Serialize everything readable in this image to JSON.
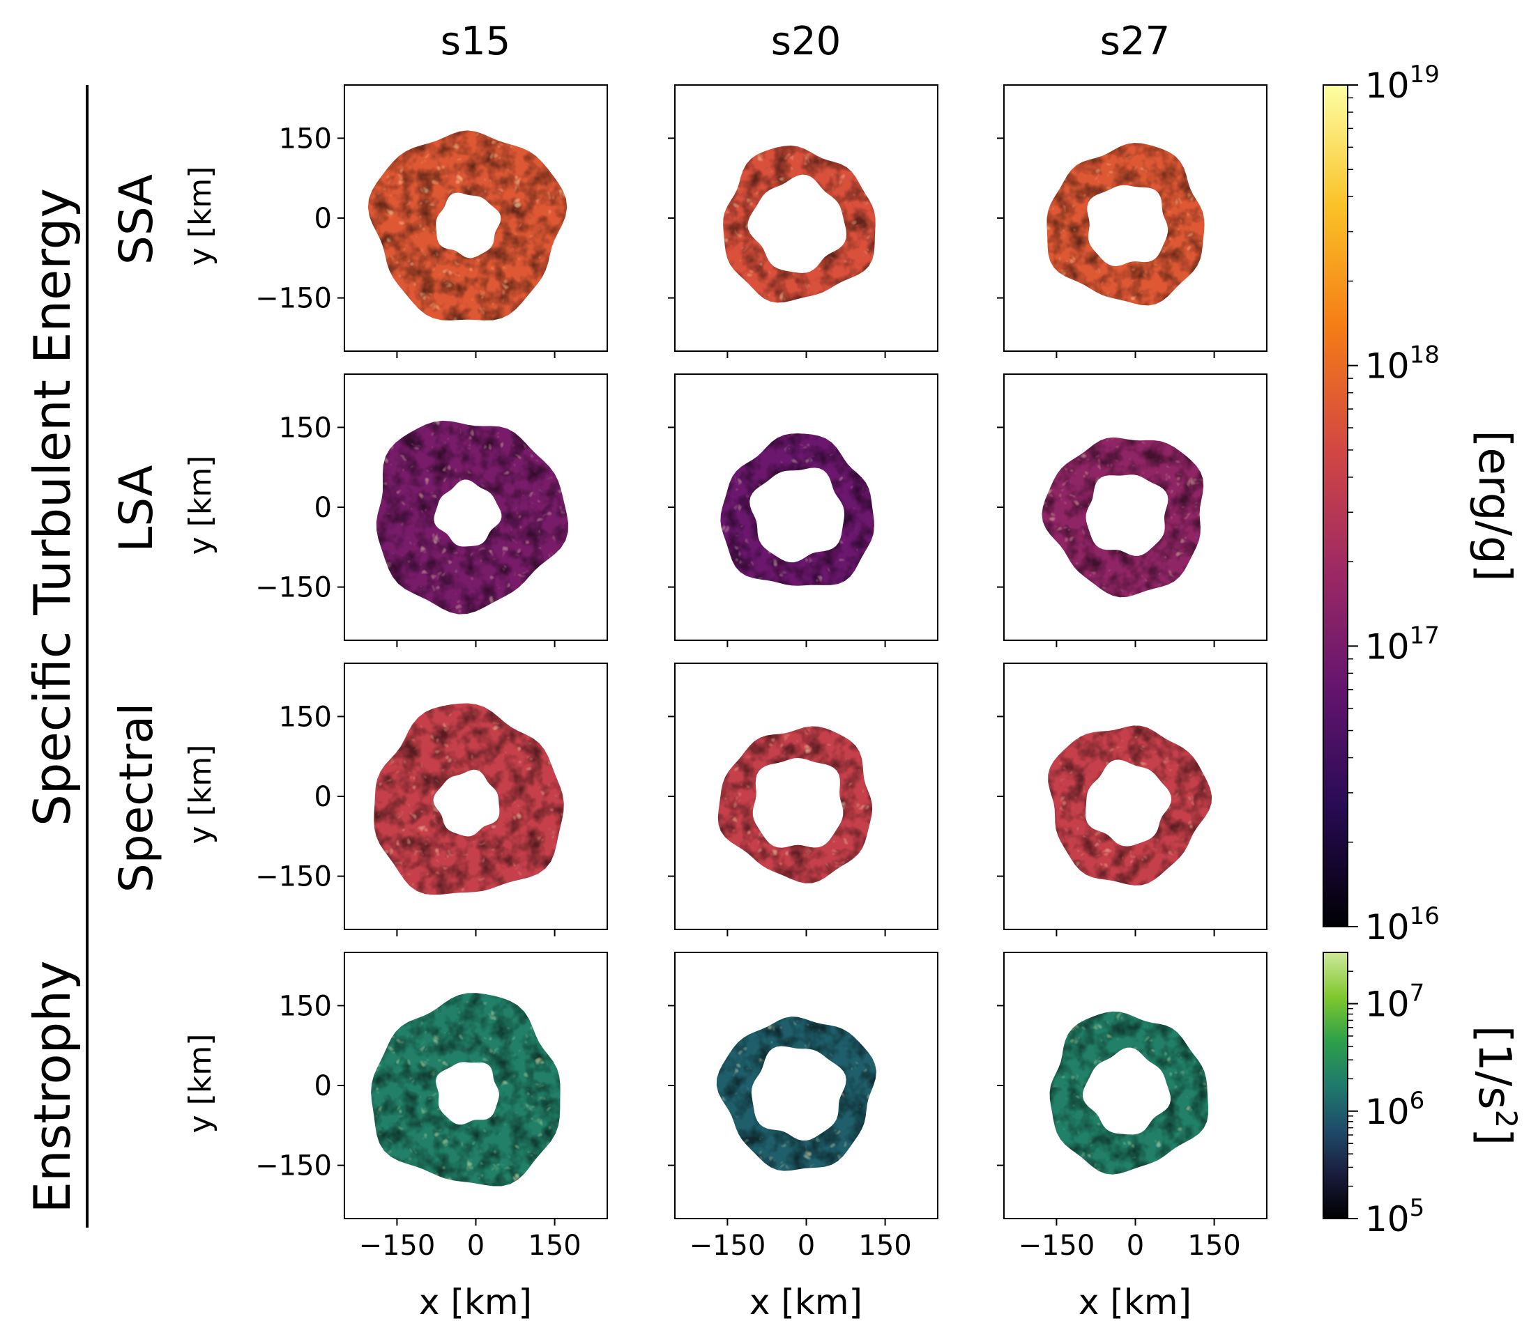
{
  "figure": {
    "column_titles": [
      "s15",
      "s20",
      "s27"
    ],
    "group_labels": {
      "top": "Specific Turbulent Energy",
      "bottom": "Enstrophy"
    },
    "row_labels": [
      "SSA",
      "LSA",
      "Spectral",
      ""
    ],
    "xlabel": "x [km]",
    "ylabel": "y [km]",
    "x_ticks": [
      "−150",
      "0",
      "150"
    ],
    "y_ticks": [
      "150",
      "0",
      "−150"
    ]
  },
  "colorbars": [
    {
      "label": "[erg/g]",
      "colormap": "inferno",
      "scale": "log",
      "range": [
        1e+16,
        1e+19
      ],
      "tick_labels": [
        {
          "base": "10",
          "exp": "19",
          "value": 1e+19
        },
        {
          "base": "10",
          "exp": "18",
          "value": 1e+18
        },
        {
          "base": "10",
          "exp": "17",
          "value": 1e+17
        },
        {
          "base": "10",
          "exp": "16",
          "value": 1e+16
        }
      ],
      "colors": [
        "#000004",
        "#280b54",
        "#65156e",
        "#9f2a63",
        "#d44842",
        "#f57d15",
        "#fac228",
        "#fcffa4"
      ]
    },
    {
      "label": "[1/s",
      "label_sup": "2",
      "label_end": "]",
      "colormap": "viridis-like",
      "scale": "log",
      "range": [
        100000.0,
        30000000.0
      ],
      "tick_labels": [
        {
          "base": "10",
          "exp": "7",
          "value": 10000000.0
        },
        {
          "base": "10",
          "exp": "6",
          "value": 1000000.0
        },
        {
          "base": "10",
          "exp": "5",
          "value": 100000.0
        }
      ],
      "colors": [
        "#000000",
        "#1a1c3c",
        "#1f4b6a",
        "#1f7a6c",
        "#2ca04a",
        "#7fc82d",
        "#cfe89a"
      ]
    }
  ],
  "chart_data": {
    "type": "heatmap",
    "rows": [
      "SSA",
      "LSA",
      "Spectral",
      "Enstrophy"
    ],
    "columns": [
      "s15",
      "s20",
      "s27"
    ],
    "xlabel": "x [km]",
    "ylabel": "y [km]",
    "xlim": [
      -250,
      250
    ],
    "ylim": [
      -250,
      250
    ],
    "x_ticks": [
      -150,
      0,
      150
    ],
    "y_ticks": [
      -150,
      0,
      150
    ],
    "panels": [
      {
        "row": "SSA",
        "column": "s15",
        "outer_radius_km": 180,
        "inner_radius_km": 60,
        "typical_value_erg_per_g": 7e+17
      },
      {
        "row": "SSA",
        "column": "s20",
        "outer_radius_km": 145,
        "inner_radius_km": 88,
        "typical_value_erg_per_g": 6e+17
      },
      {
        "row": "SSA",
        "column": "s27",
        "outer_radius_km": 150,
        "inner_radius_km": 78,
        "typical_value_erg_per_g": 7e+17
      },
      {
        "row": "LSA",
        "column": "s15",
        "outer_radius_km": 180,
        "inner_radius_km": 60,
        "typical_value_erg_per_g": 1e+17
      },
      {
        "row": "LSA",
        "column": "s20",
        "outer_radius_km": 145,
        "inner_radius_km": 88,
        "typical_value_erg_per_g": 8e+16
      },
      {
        "row": "LSA",
        "column": "s27",
        "outer_radius_km": 150,
        "inner_radius_km": 78,
        "typical_value_erg_per_g": 1.5e+17
      },
      {
        "row": "Spectral",
        "column": "s15",
        "outer_radius_km": 180,
        "inner_radius_km": 60,
        "typical_value_erg_per_g": 4e+17
      },
      {
        "row": "Spectral",
        "column": "s20",
        "outer_radius_km": 145,
        "inner_radius_km": 88,
        "typical_value_erg_per_g": 4e+17
      },
      {
        "row": "Spectral",
        "column": "s27",
        "outer_radius_km": 150,
        "inner_radius_km": 78,
        "typical_value_erg_per_g": 4e+17
      },
      {
        "row": "Enstrophy",
        "column": "s15",
        "outer_radius_km": 180,
        "inner_radius_km": 60,
        "typical_value_per_s2": 2000000.0
      },
      {
        "row": "Enstrophy",
        "column": "s20",
        "outer_radius_km": 145,
        "inner_radius_km": 88,
        "typical_value_per_s2": 1000000.0
      },
      {
        "row": "Enstrophy",
        "column": "s27",
        "outer_radius_km": 150,
        "inner_radius_km": 78,
        "typical_value_per_s2": 2000000.0
      }
    ]
  }
}
